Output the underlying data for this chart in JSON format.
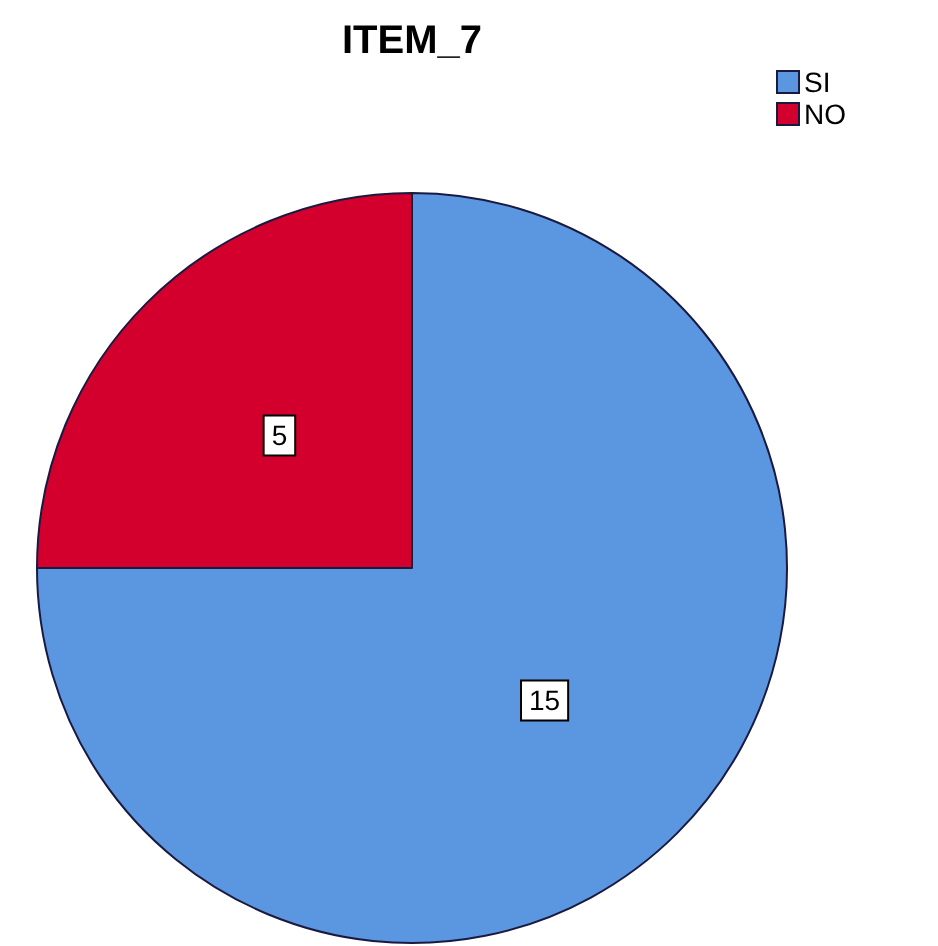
{
  "chart_data": {
    "type": "pie",
    "title": "ITEM_7",
    "categories": [
      "SI",
      "NO"
    ],
    "values": [
      15,
      5
    ],
    "colors": [
      "#5b96e0",
      "#d3002e"
    ],
    "legend": "top right",
    "data_labels": true
  }
}
